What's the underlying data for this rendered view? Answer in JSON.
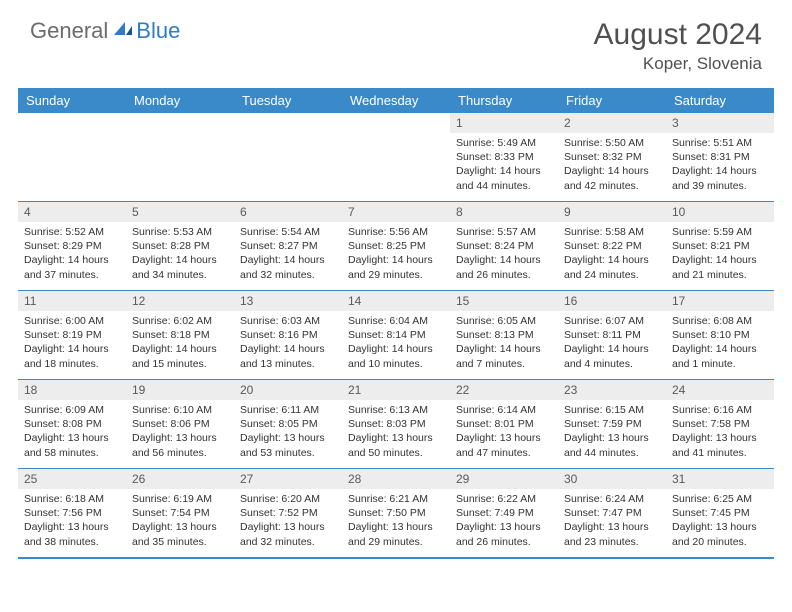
{
  "logo": {
    "general": "General",
    "blue": "Blue"
  },
  "title": {
    "month": "August 2024",
    "location": "Koper, Slovenia"
  },
  "colors": {
    "header_bg": "#3a89c9",
    "header_text": "#ffffff",
    "daynum_bg": "#ededed",
    "daynum_text": "#5a5a5a",
    "body_text": "#333333",
    "divider": "#3a89c9",
    "logo_gray": "#6b6b6b",
    "logo_blue": "#2d7cc5",
    "title_color": "#505050"
  },
  "day_headers": [
    "Sunday",
    "Monday",
    "Tuesday",
    "Wednesday",
    "Thursday",
    "Friday",
    "Saturday"
  ],
  "weeks": [
    [
      {
        "empty": true
      },
      {
        "empty": true
      },
      {
        "empty": true
      },
      {
        "empty": true
      },
      {
        "day": "1",
        "sunrise": "Sunrise: 5:49 AM",
        "sunset": "Sunset: 8:33 PM",
        "daylight": "Daylight: 14 hours and 44 minutes."
      },
      {
        "day": "2",
        "sunrise": "Sunrise: 5:50 AM",
        "sunset": "Sunset: 8:32 PM",
        "daylight": "Daylight: 14 hours and 42 minutes."
      },
      {
        "day": "3",
        "sunrise": "Sunrise: 5:51 AM",
        "sunset": "Sunset: 8:31 PM",
        "daylight": "Daylight: 14 hours and 39 minutes."
      }
    ],
    [
      {
        "day": "4",
        "sunrise": "Sunrise: 5:52 AM",
        "sunset": "Sunset: 8:29 PM",
        "daylight": "Daylight: 14 hours and 37 minutes."
      },
      {
        "day": "5",
        "sunrise": "Sunrise: 5:53 AM",
        "sunset": "Sunset: 8:28 PM",
        "daylight": "Daylight: 14 hours and 34 minutes."
      },
      {
        "day": "6",
        "sunrise": "Sunrise: 5:54 AM",
        "sunset": "Sunset: 8:27 PM",
        "daylight": "Daylight: 14 hours and 32 minutes."
      },
      {
        "day": "7",
        "sunrise": "Sunrise: 5:56 AM",
        "sunset": "Sunset: 8:25 PM",
        "daylight": "Daylight: 14 hours and 29 minutes."
      },
      {
        "day": "8",
        "sunrise": "Sunrise: 5:57 AM",
        "sunset": "Sunset: 8:24 PM",
        "daylight": "Daylight: 14 hours and 26 minutes."
      },
      {
        "day": "9",
        "sunrise": "Sunrise: 5:58 AM",
        "sunset": "Sunset: 8:22 PM",
        "daylight": "Daylight: 14 hours and 24 minutes."
      },
      {
        "day": "10",
        "sunrise": "Sunrise: 5:59 AM",
        "sunset": "Sunset: 8:21 PM",
        "daylight": "Daylight: 14 hours and 21 minutes."
      }
    ],
    [
      {
        "day": "11",
        "sunrise": "Sunrise: 6:00 AM",
        "sunset": "Sunset: 8:19 PM",
        "daylight": "Daylight: 14 hours and 18 minutes."
      },
      {
        "day": "12",
        "sunrise": "Sunrise: 6:02 AM",
        "sunset": "Sunset: 8:18 PM",
        "daylight": "Daylight: 14 hours and 15 minutes."
      },
      {
        "day": "13",
        "sunrise": "Sunrise: 6:03 AM",
        "sunset": "Sunset: 8:16 PM",
        "daylight": "Daylight: 14 hours and 13 minutes."
      },
      {
        "day": "14",
        "sunrise": "Sunrise: 6:04 AM",
        "sunset": "Sunset: 8:14 PM",
        "daylight": "Daylight: 14 hours and 10 minutes."
      },
      {
        "day": "15",
        "sunrise": "Sunrise: 6:05 AM",
        "sunset": "Sunset: 8:13 PM",
        "daylight": "Daylight: 14 hours and 7 minutes."
      },
      {
        "day": "16",
        "sunrise": "Sunrise: 6:07 AM",
        "sunset": "Sunset: 8:11 PM",
        "daylight": "Daylight: 14 hours and 4 minutes."
      },
      {
        "day": "17",
        "sunrise": "Sunrise: 6:08 AM",
        "sunset": "Sunset: 8:10 PM",
        "daylight": "Daylight: 14 hours and 1 minute."
      }
    ],
    [
      {
        "day": "18",
        "sunrise": "Sunrise: 6:09 AM",
        "sunset": "Sunset: 8:08 PM",
        "daylight": "Daylight: 13 hours and 58 minutes."
      },
      {
        "day": "19",
        "sunrise": "Sunrise: 6:10 AM",
        "sunset": "Sunset: 8:06 PM",
        "daylight": "Daylight: 13 hours and 56 minutes."
      },
      {
        "day": "20",
        "sunrise": "Sunrise: 6:11 AM",
        "sunset": "Sunset: 8:05 PM",
        "daylight": "Daylight: 13 hours and 53 minutes."
      },
      {
        "day": "21",
        "sunrise": "Sunrise: 6:13 AM",
        "sunset": "Sunset: 8:03 PM",
        "daylight": "Daylight: 13 hours and 50 minutes."
      },
      {
        "day": "22",
        "sunrise": "Sunrise: 6:14 AM",
        "sunset": "Sunset: 8:01 PM",
        "daylight": "Daylight: 13 hours and 47 minutes."
      },
      {
        "day": "23",
        "sunrise": "Sunrise: 6:15 AM",
        "sunset": "Sunset: 7:59 PM",
        "daylight": "Daylight: 13 hours and 44 minutes."
      },
      {
        "day": "24",
        "sunrise": "Sunrise: 6:16 AM",
        "sunset": "Sunset: 7:58 PM",
        "daylight": "Daylight: 13 hours and 41 minutes."
      }
    ],
    [
      {
        "day": "25",
        "sunrise": "Sunrise: 6:18 AM",
        "sunset": "Sunset: 7:56 PM",
        "daylight": "Daylight: 13 hours and 38 minutes."
      },
      {
        "day": "26",
        "sunrise": "Sunrise: 6:19 AM",
        "sunset": "Sunset: 7:54 PM",
        "daylight": "Daylight: 13 hours and 35 minutes."
      },
      {
        "day": "27",
        "sunrise": "Sunrise: 6:20 AM",
        "sunset": "Sunset: 7:52 PM",
        "daylight": "Daylight: 13 hours and 32 minutes."
      },
      {
        "day": "28",
        "sunrise": "Sunrise: 6:21 AM",
        "sunset": "Sunset: 7:50 PM",
        "daylight": "Daylight: 13 hours and 29 minutes."
      },
      {
        "day": "29",
        "sunrise": "Sunrise: 6:22 AM",
        "sunset": "Sunset: 7:49 PM",
        "daylight": "Daylight: 13 hours and 26 minutes."
      },
      {
        "day": "30",
        "sunrise": "Sunrise: 6:24 AM",
        "sunset": "Sunset: 7:47 PM",
        "daylight": "Daylight: 13 hours and 23 minutes."
      },
      {
        "day": "31",
        "sunrise": "Sunrise: 6:25 AM",
        "sunset": "Sunset: 7:45 PM",
        "daylight": "Daylight: 13 hours and 20 minutes."
      }
    ]
  ]
}
